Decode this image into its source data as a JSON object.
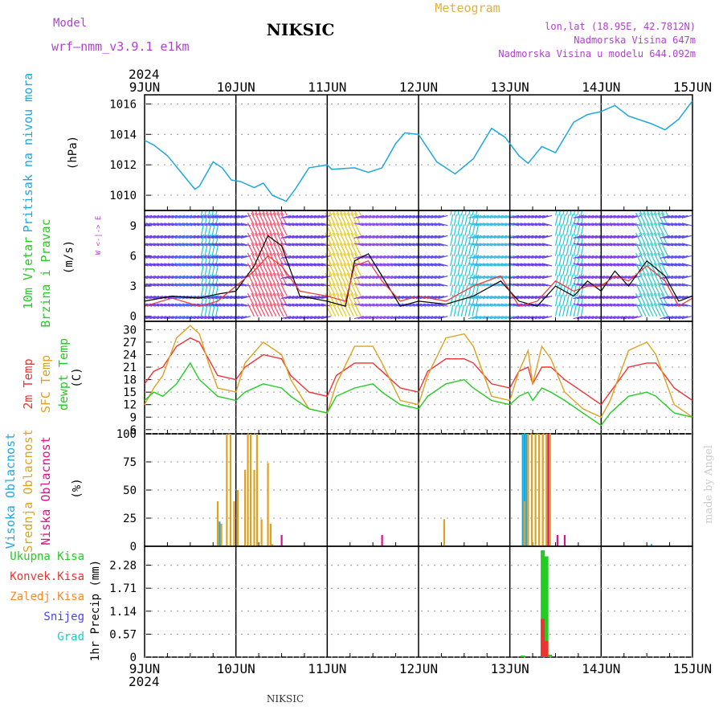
{
  "header": {
    "model_label": "Model",
    "model_name": "wrf–nmm_v3.9.1  e1km",
    "station": "NIKSIC",
    "chart_title": "Meteogram",
    "location": "lon,lat (18.95E, 42.7812N)",
    "elevation": "Nadmorska Visina 647m",
    "model_elevation": "Nadmorska Visina u modelu 644.092m",
    "footer_station": "NIKSIC",
    "credit": "made by Angel"
  },
  "time_axis": {
    "year": "2024",
    "ticks": [
      "9JUN",
      "10JUN",
      "11JUN",
      "12JUN",
      "13JUN",
      "14JUN",
      "15JUN"
    ]
  },
  "colors": {
    "pressure": "#1ea8e0",
    "wind_label": "#22cc22",
    "temp_2m": "#ee3333",
    "temp_sfc": "#e0a020",
    "dewpoint": "#22cc22",
    "cloud_high": "#1ea8e0",
    "cloud_mid": "#e0a020",
    "cloud_low": "#dd1188",
    "precip_total": "#22cc22",
    "precip_conv": "#ee3333",
    "precip_frozen": "#ff8822",
    "snow": "#4444ee",
    "hail": "#22ccbb",
    "header_purple": "#b040d0",
    "header_gold": "#e0b040"
  },
  "chart_data": [
    {
      "panel": "pressure",
      "type": "line",
      "ylabel_1": "Pritisak na nivou mora",
      "ylabel_2": "(hPa)",
      "yticks": [
        "1010",
        "1012",
        "1014",
        "1016"
      ],
      "ylim": [
        1009,
        1016.6
      ],
      "x": [
        0,
        0.1,
        0.25,
        0.4,
        0.55,
        0.6,
        0.75,
        0.85,
        0.95,
        1.05,
        1.2,
        1.3,
        1.4,
        1.55,
        1.65,
        1.8,
        2.0,
        2.05,
        2.3,
        2.45,
        2.6,
        2.75,
        2.85,
        3.0,
        3.2,
        3.4,
        3.6,
        3.8,
        3.95,
        4.1,
        4.2,
        4.35,
        4.5,
        4.7,
        4.85,
        5.0,
        5.15,
        5.3,
        5.55,
        5.7,
        5.85,
        6.0
      ],
      "values": [
        1013.6,
        1013.3,
        1012.6,
        1011.5,
        1010.4,
        1010.6,
        1012.2,
        1011.8,
        1011.0,
        1010.9,
        1010.5,
        1010.8,
        1010.0,
        1009.6,
        1010.4,
        1011.8,
        1012.0,
        1011.7,
        1011.8,
        1011.5,
        1011.8,
        1013.4,
        1014.1,
        1014.0,
        1012.2,
        1011.4,
        1012.4,
        1014.4,
        1013.8,
        1012.6,
        1012.1,
        1013.2,
        1012.8,
        1014.8,
        1015.3,
        1015.5,
        1015.9,
        1015.2,
        1014.7,
        1014.3,
        1015.0,
        1016.2
      ]
    },
    {
      "panel": "wind",
      "type": "line",
      "ylabel_1": "10m Vjetar",
      "ylabel_2": "Brzina i Pravac",
      "ylabel_3": "(m/s)",
      "compass": "W <-|-> E",
      "yticks": [
        "0",
        "3",
        "6",
        "9"
      ],
      "ylim": [
        -0.5,
        10.5
      ],
      "series": [
        {
          "name": "speed",
          "x": [
            0,
            0.3,
            0.6,
            0.8,
            1.0,
            1.2,
            1.35,
            1.5,
            1.7,
            2.0,
            2.2,
            2.3,
            2.45,
            2.6,
            2.8,
            3.0,
            3.3,
            3.6,
            3.9,
            4.1,
            4.3,
            4.5,
            4.7,
            4.85,
            5.0,
            5.15,
            5.3,
            5.5,
            5.7,
            5.85,
            6.0
          ],
          "values": [
            1.5,
            2.0,
            1.8,
            2.2,
            2.5,
            5.0,
            8.0,
            7.0,
            2.0,
            1.5,
            1.0,
            5.5,
            6.2,
            4.0,
            1.0,
            1.5,
            1.2,
            2.0,
            3.5,
            1.5,
            1.0,
            3.0,
            2.0,
            3.5,
            2.5,
            4.5,
            3.0,
            5.5,
            4.0,
            1.5,
            2.0
          ]
        },
        {
          "name": "gust",
          "x": [
            0,
            0.3,
            0.6,
            0.8,
            1.0,
            1.2,
            1.35,
            1.5,
            1.7,
            2.0,
            2.2,
            2.3,
            2.45,
            2.6,
            2.8,
            3.0,
            3.3,
            3.6,
            3.9,
            4.1,
            4.3,
            4.5,
            4.7,
            4.85,
            5.0,
            5.15,
            5.3,
            5.5,
            5.7,
            5.85,
            6.0
          ],
          "values": [
            1.0,
            1.8,
            1.0,
            1.5,
            3.0,
            4.5,
            6.0,
            5.0,
            2.5,
            2.0,
            1.5,
            5.0,
            5.5,
            3.5,
            1.5,
            2.0,
            1.5,
            3.0,
            4.0,
            1.0,
            1.5,
            3.5,
            2.5,
            3.0,
            3.0,
            4.0,
            3.5,
            5.0,
            3.5,
            1.0,
            1.8
          ]
        }
      ]
    },
    {
      "panel": "temperature",
      "type": "line",
      "ylabel_1": "2m Temp",
      "ylabel_2": "SFC Temp",
      "ylabel_3": "dewpt Temp",
      "ylabel_4": "(C)",
      "yticks": [
        "6",
        "9",
        "12",
        "15",
        "18",
        "21",
        "24",
        "27",
        "30"
      ],
      "ylim": [
        5,
        32
      ],
      "series": [
        {
          "name": "2m Temp",
          "x": [
            0,
            0.1,
            0.2,
            0.35,
            0.5,
            0.6,
            0.7,
            0.8,
            1.0,
            1.1,
            1.3,
            1.5,
            1.6,
            1.8,
            2.0,
            2.1,
            2.3,
            2.5,
            2.6,
            2.8,
            3.0,
            3.1,
            3.3,
            3.5,
            3.6,
            3.8,
            4.0,
            4.1,
            4.2,
            4.25,
            4.35,
            4.45,
            4.6,
            4.8,
            5.0,
            5.1,
            5.3,
            5.5,
            5.6,
            5.8,
            6.0
          ],
          "values": [
            17,
            20,
            21,
            26,
            28,
            27,
            23,
            19,
            18,
            21,
            24,
            23,
            19,
            15,
            14,
            19,
            22,
            22,
            20,
            16,
            15,
            20,
            23,
            23,
            22,
            17,
            16,
            20,
            21,
            17,
            21,
            21,
            18,
            15,
            12,
            15,
            21,
            22,
            22,
            16,
            13
          ]
        },
        {
          "name": "SFC Temp",
          "x": [
            0,
            0.1,
            0.2,
            0.35,
            0.5,
            0.6,
            0.7,
            0.8,
            1.0,
            1.1,
            1.3,
            1.5,
            1.6,
            1.8,
            2.0,
            2.1,
            2.3,
            2.5,
            2.6,
            2.8,
            3.0,
            3.1,
            3.3,
            3.5,
            3.6,
            3.8,
            4.0,
            4.1,
            4.2,
            4.25,
            4.35,
            4.45,
            4.6,
            4.8,
            5.0,
            5.1,
            5.3,
            5.5,
            5.6,
            5.8,
            6.0
          ],
          "values": [
            12,
            16,
            19,
            28,
            31,
            29,
            22,
            16,
            15,
            22,
            27,
            24,
            18,
            11,
            10,
            17,
            26,
            26,
            22,
            13,
            12,
            19,
            28,
            29,
            26,
            14,
            13,
            20,
            25,
            17,
            26,
            23,
            15,
            11,
            9,
            13,
            25,
            27,
            24,
            12,
            9
          ]
        },
        {
          "name": "dewpt Temp",
          "x": [
            0,
            0.1,
            0.2,
            0.35,
            0.5,
            0.6,
            0.7,
            0.8,
            1.0,
            1.1,
            1.3,
            1.5,
            1.6,
            1.8,
            2.0,
            2.1,
            2.3,
            2.5,
            2.6,
            2.8,
            3.0,
            3.1,
            3.3,
            3.5,
            3.6,
            3.8,
            4.0,
            4.1,
            4.2,
            4.25,
            4.35,
            4.45,
            4.6,
            4.8,
            5.0,
            5.1,
            5.3,
            5.5,
            5.6,
            5.8,
            6.0
          ],
          "values": [
            13,
            15,
            14,
            17,
            22,
            18,
            16,
            14,
            13,
            15,
            17,
            16,
            14,
            11,
            10,
            14,
            16,
            17,
            15,
            12,
            11,
            14,
            17,
            18,
            16,
            13,
            12,
            14,
            15,
            13,
            16,
            15,
            13,
            10,
            7,
            10,
            14,
            15,
            14,
            10,
            9
          ]
        }
      ]
    },
    {
      "panel": "clouds",
      "type": "bar",
      "ylabel_1": "Visoka Oblacnost",
      "ylabel_2": "Srednja Oblacnost",
      "ylabel_3": "Niska Oblacnost",
      "ylabel_4": "(%)",
      "yticks": [
        "0",
        "25",
        "50",
        "75",
        "100"
      ],
      "ylim": [
        0,
        100
      ],
      "series": [
        {
          "name": "Visoka Oblacnost",
          "x": [
            0.82,
            4.14,
            4.16,
            4.18,
            5.55
          ],
          "values": [
            22,
            100,
            100,
            100,
            2
          ]
        },
        {
          "name": "Srednja Oblacnost",
          "x": [
            0.8,
            0.84,
            0.9,
            0.94,
            0.98,
            1.02,
            1.1,
            1.13,
            1.16,
            1.2,
            1.23,
            1.28,
            1.35,
            1.38,
            1.4,
            3.28,
            4.16,
            4.2,
            4.24,
            4.28,
            4.32,
            4.36,
            4.4,
            4.44
          ],
          "values": [
            40,
            20,
            100,
            100,
            40,
            50,
            68,
            100,
            100,
            68,
            100,
            24,
            74,
            20,
            2,
            24,
            40,
            100,
            100,
            100,
            100,
            100,
            100,
            100
          ]
        },
        {
          "name": "Niska Oblacnost",
          "x": [
            1.5,
            2.6,
            4.42,
            4.52,
            4.6
          ],
          "values": [
            10,
            10,
            100,
            10,
            10
          ]
        }
      ]
    },
    {
      "panel": "precip",
      "type": "bar",
      "ylabel_1": "Ukupna Kisa",
      "ylabel_2": "Konvek.Kisa",
      "ylabel_3": "Zaledj.Kisa",
      "ylabel_4": "Snijeg",
      "ylabel_5": "Grad",
      "ylabel_6": "1hr Precip (mm)",
      "yticks": [
        "0",
        "0.57",
        "1.14",
        "1.71",
        "2.28"
      ],
      "ylim": [
        0,
        2.75
      ],
      "series": [
        {
          "name": "Ukupna Kisa",
          "x": [
            4.14,
            4.36,
            4.4,
            4.44
          ],
          "values": [
            0.04,
            2.65,
            2.5,
            0.06
          ]
        },
        {
          "name": "Konvek.Kisa",
          "x": [
            4.36,
            4.4
          ],
          "values": [
            0.95,
            0.4
          ]
        }
      ]
    }
  ]
}
